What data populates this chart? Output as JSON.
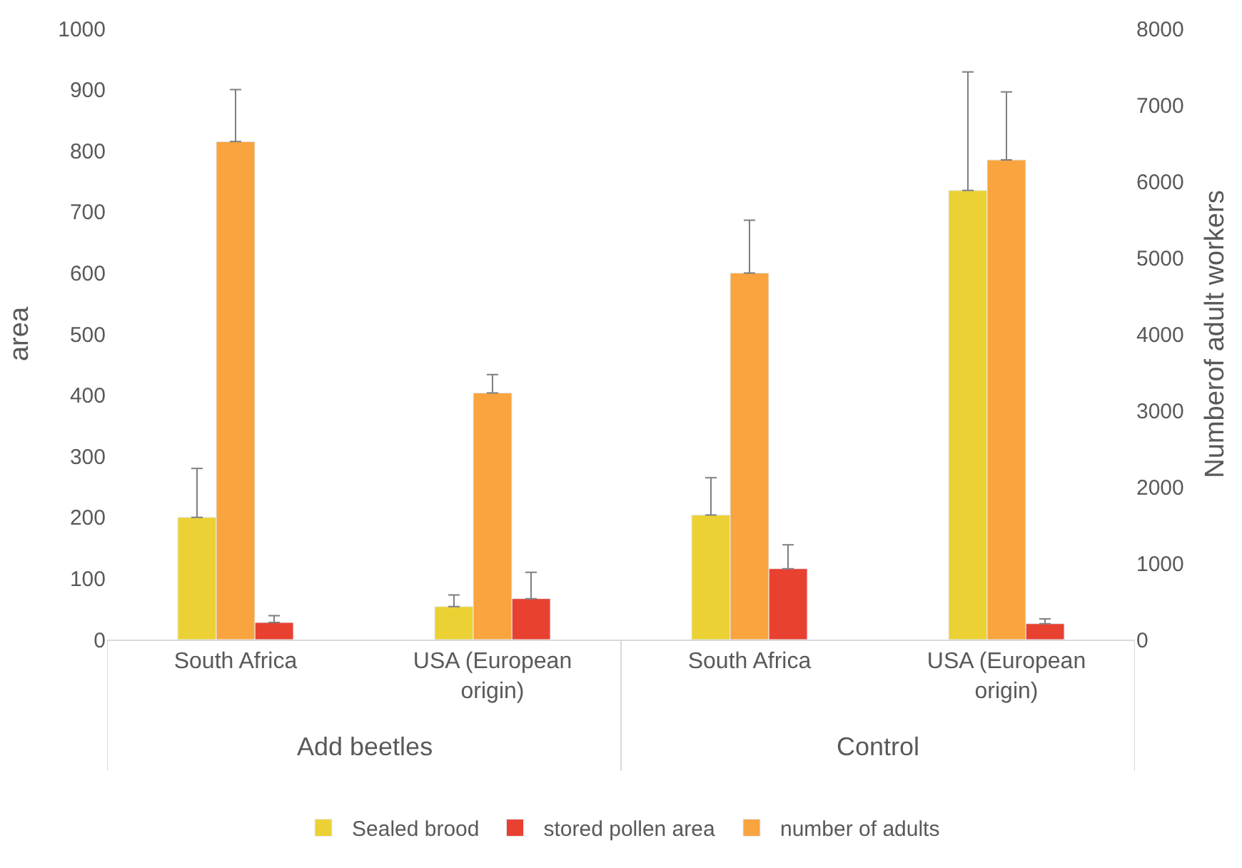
{
  "chart_data": {
    "type": "bar",
    "ylabel": "area",
    "y2label": "Numberof adult workers",
    "categories": [
      "South Africa",
      "USA (European origin)",
      "South Africa",
      "USA (European origin)"
    ],
    "series": [
      {
        "name": "Sealed brood",
        "color": "#ecd134",
        "values": [
          200,
          54,
          204,
          735
        ],
        "errors": [
          [
            200,
            280
          ],
          [
            54,
            73
          ],
          [
            204,
            265
          ],
          [
            735,
            929
          ]
        ]
      },
      {
        "name": "number of adults",
        "color": "#f9a43f",
        "axis": "y2",
        "values": [
          6520,
          3230,
          4800,
          6280
        ],
        "errors": [
          [
            6520,
            7200
          ],
          [
            3230,
            3470
          ],
          [
            4800,
            5490
          ],
          [
            6280,
            7170
          ]
        ]
      },
      {
        "name": "stored pollen area",
        "color": "#e8412f",
        "values": [
          28,
          67,
          116,
          26
        ],
        "errors": [
          [
            28,
            39
          ],
          [
            67,
            110
          ],
          [
            116,
            155
          ],
          [
            26,
            34
          ]
        ]
      }
    ],
    "annotations": [
      "Add beetles",
      "Control"
    ],
    "ylim": [
      0,
      1000
    ],
    "yticks": [
      0,
      100,
      200,
      300,
      400,
      500,
      600,
      700,
      800,
      900,
      1000
    ],
    "y2lim": [
      0,
      8000
    ],
    "y2ticks": [
      0,
      1000,
      2000,
      3000,
      4000,
      5000,
      6000,
      7000,
      8000
    ],
    "legend": "bottom"
  }
}
